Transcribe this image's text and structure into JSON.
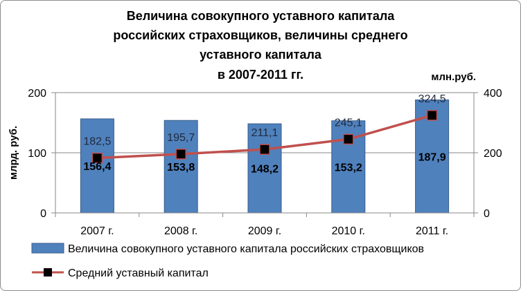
{
  "chart_data": {
    "type": "bar",
    "title_lines": [
      "Величина совокупного уставного капитала",
      "российских страховщиков,  величины среднего",
      "уставного капитала",
      "в 2007-2011 гг."
    ],
    "ylabel_left": "млрд. руб.",
    "ylabel_right": "млн.руб.",
    "ylim_left": [
      0,
      200
    ],
    "ylim_right": [
      0,
      400
    ],
    "yticks_left": [
      "0",
      "100",
      "200"
    ],
    "yticks_right": [
      "0",
      "200",
      "400"
    ],
    "categories": [
      "2007 г.",
      "2008 г.",
      "2009 г.",
      "2010 г.",
      "2011 г."
    ],
    "series": [
      {
        "name": "Величина совокупного уставного капитала российских страховщиков",
        "type": "bar",
        "axis": "left",
        "color": "#4f81bd",
        "values": [
          156.4,
          153.8,
          148.2,
          153.2,
          187.9
        ],
        "labels": [
          "156,4",
          "153,8",
          "148,2",
          "153,2",
          "187,9"
        ]
      },
      {
        "name": "Средний уставный капитал",
        "type": "line",
        "axis": "right",
        "color": "#c0504d",
        "marker_color": "#000000",
        "values": [
          182.5,
          195.7,
          211.1,
          245.1,
          324.5
        ],
        "labels": [
          "182,5",
          "195,7",
          "211,1",
          "245,1",
          "324,5"
        ]
      }
    ],
    "grid": true,
    "legend_position": "bottom"
  }
}
